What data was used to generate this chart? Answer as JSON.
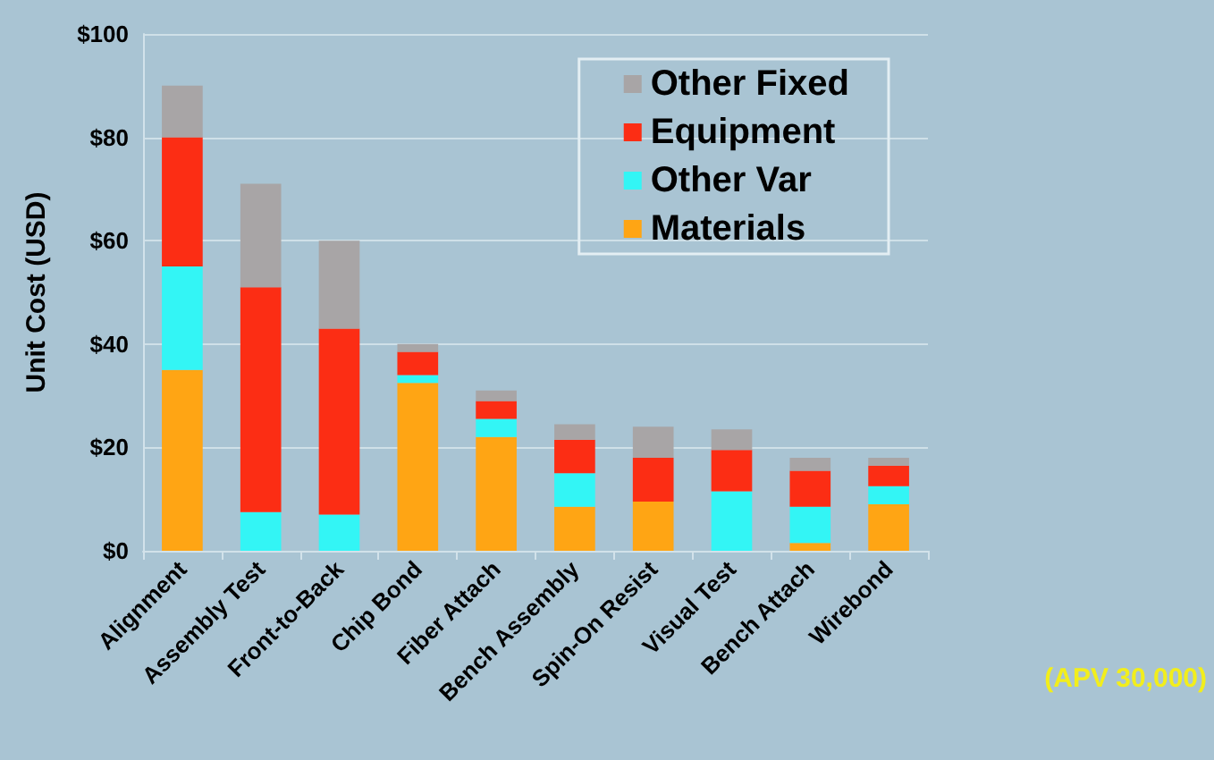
{
  "chart_data": {
    "type": "bar",
    "stacked": true,
    "ylabel": "Unit Cost (USD)",
    "categories": [
      "Alignment",
      "Assembly Test",
      "Front-to-Back",
      "Chip Bond",
      "Fiber Attach",
      "Bench Assembly",
      "Spin-On Resist",
      "Visual Test",
      "Bench Attach",
      "Wirebond"
    ],
    "series": [
      {
        "name": "Materials",
        "color": "#ffa514",
        "values": [
          35,
          0,
          0,
          32.5,
          22,
          8.5,
          9.5,
          0,
          1.5,
          9
        ]
      },
      {
        "name": "Other Var",
        "color": "#33f5f5",
        "values": [
          20,
          7.5,
          7,
          1.5,
          3.5,
          6.5,
          0,
          11.5,
          7,
          3.5
        ]
      },
      {
        "name": "Equipment",
        "color": "#fc2d14",
        "values": [
          25,
          43.5,
          36,
          4.5,
          3.5,
          6.5,
          8.5,
          8,
          7,
          4
        ]
      },
      {
        "name": "Other Fixed",
        "color": "#a8a5a6",
        "values": [
          10,
          20,
          17,
          1.5,
          2,
          3,
          6,
          4,
          2.5,
          1.5
        ]
      }
    ],
    "ylim": [
      0,
      100
    ],
    "yticks": [
      {
        "value": 0,
        "label": "$0"
      },
      {
        "value": 20,
        "label": "$20"
      },
      {
        "value": 40,
        "label": "$40"
      },
      {
        "value": 60,
        "label": "$60"
      },
      {
        "value": 80,
        "label": "$80"
      },
      {
        "value": 100,
        "label": "$100"
      }
    ],
    "grid": "y",
    "legend": "top right",
    "annotations": [
      "(APV 30,000)"
    ]
  }
}
